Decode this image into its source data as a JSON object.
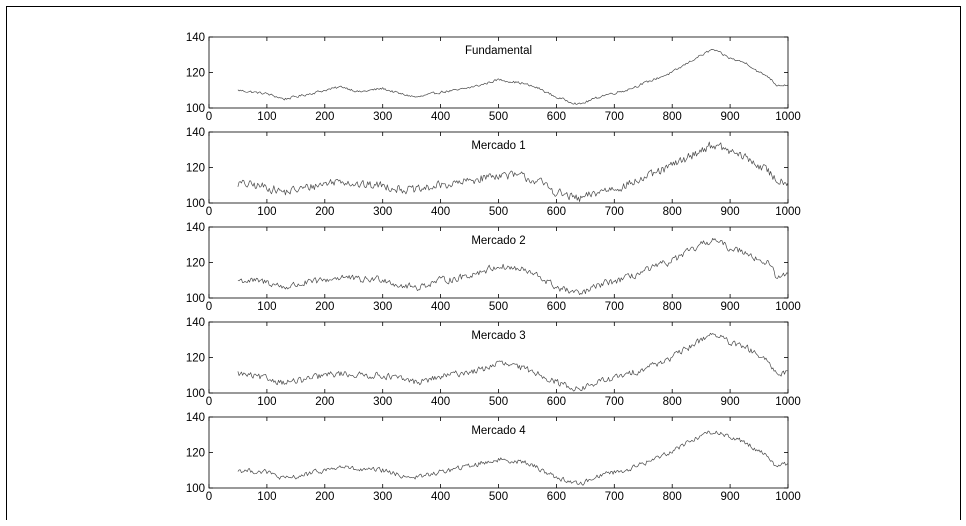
{
  "chart_data": [
    {
      "type": "line",
      "title": "Fundamental",
      "xlim": [
        0,
        1000
      ],
      "ylim": [
        100,
        140
      ],
      "xticks": [
        0,
        100,
        200,
        300,
        400,
        500,
        600,
        700,
        800,
        900,
        1000
      ],
      "yticks": [
        100,
        120,
        140
      ],
      "x_start": 50,
      "x_end": 1000,
      "key_x": [
        50,
        100,
        130,
        160,
        200,
        230,
        260,
        300,
        330,
        360,
        400,
        430,
        470,
        500,
        540,
        570,
        600,
        640,
        680,
        720,
        760,
        800,
        840,
        870,
        900,
        930,
        950,
        965,
        980,
        1000
      ],
      "key_y": [
        110,
        108,
        105,
        107,
        110,
        112,
        109,
        111,
        108,
        106,
        109,
        110,
        113,
        116,
        114,
        111,
        106,
        102,
        107,
        110,
        115,
        120,
        128,
        133,
        128,
        125,
        120,
        118,
        113,
        113
      ],
      "noise": 1.0
    },
    {
      "type": "line",
      "title": "Mercado 1",
      "xlim": [
        0,
        1000
      ],
      "ylim": [
        100,
        140
      ],
      "xticks": [
        0,
        100,
        200,
        300,
        400,
        500,
        600,
        700,
        800,
        900,
        1000
      ],
      "yticks": [
        100,
        120,
        140
      ],
      "x_start": 50,
      "x_end": 1000,
      "key_x": [
        50,
        100,
        130,
        160,
        200,
        230,
        260,
        300,
        330,
        360,
        400,
        430,
        470,
        500,
        540,
        570,
        600,
        640,
        680,
        720,
        760,
        800,
        840,
        870,
        900,
        930,
        950,
        965,
        980,
        1000
      ],
      "key_y": [
        111,
        109,
        106,
        108,
        111,
        113,
        110,
        110,
        108,
        107,
        110,
        111,
        114,
        116,
        115,
        112,
        106,
        102,
        107,
        110,
        115,
        121,
        128,
        133,
        129,
        125,
        121,
        118,
        113,
        112
      ],
      "noise": 3.5
    },
    {
      "type": "line",
      "title": "Mercado 2",
      "xlim": [
        0,
        1000
      ],
      "ylim": [
        100,
        140
      ],
      "xticks": [
        0,
        100,
        200,
        300,
        400,
        500,
        600,
        700,
        800,
        900,
        1000
      ],
      "yticks": [
        100,
        120,
        140
      ],
      "x_start": 50,
      "x_end": 1000,
      "key_x": [
        50,
        100,
        130,
        160,
        200,
        230,
        260,
        300,
        330,
        360,
        400,
        430,
        470,
        500,
        540,
        570,
        600,
        640,
        680,
        720,
        760,
        800,
        840,
        870,
        900,
        930,
        950,
        965,
        980,
        1000
      ],
      "key_y": [
        110,
        109,
        106,
        108,
        110,
        112,
        110,
        111,
        107,
        106,
        110,
        111,
        115,
        118,
        116,
        112,
        106,
        102,
        108,
        111,
        116,
        121,
        128,
        133,
        128,
        126,
        121,
        120,
        112,
        113
      ],
      "noise": 2.8
    },
    {
      "type": "line",
      "title": "Mercado 3",
      "xlim": [
        0,
        1000
      ],
      "ylim": [
        100,
        140
      ],
      "xticks": [
        0,
        100,
        200,
        300,
        400,
        500,
        600,
        700,
        800,
        900,
        1000
      ],
      "yticks": [
        100,
        120,
        140
      ],
      "x_start": 50,
      "x_end": 1000,
      "key_x": [
        50,
        100,
        130,
        160,
        200,
        230,
        260,
        300,
        330,
        360,
        400,
        430,
        470,
        500,
        540,
        570,
        600,
        640,
        680,
        720,
        760,
        800,
        840,
        870,
        900,
        930,
        950,
        965,
        980,
        1000
      ],
      "key_y": [
        111,
        108,
        106,
        107,
        110,
        111,
        110,
        110,
        108,
        106,
        109,
        111,
        113,
        117,
        114,
        111,
        106,
        102,
        107,
        110,
        115,
        120,
        128,
        134,
        128,
        125,
        121,
        117,
        111,
        112
      ],
      "noise": 2.6
    },
    {
      "type": "line",
      "title": "Mercado 4",
      "xlim": [
        0,
        1000
      ],
      "ylim": [
        100,
        140
      ],
      "xticks": [
        0,
        100,
        200,
        300,
        400,
        500,
        600,
        700,
        800,
        900,
        1000
      ],
      "yticks": [
        100,
        120,
        140
      ],
      "x_start": 50,
      "x_end": 1000,
      "key_x": [
        50,
        100,
        130,
        160,
        200,
        230,
        260,
        300,
        330,
        360,
        400,
        430,
        470,
        500,
        540,
        570,
        600,
        640,
        680,
        720,
        760,
        800,
        840,
        870,
        900,
        930,
        950,
        965,
        980,
        1000
      ],
      "key_y": [
        110,
        109,
        105,
        107,
        110,
        112,
        110,
        110,
        107,
        106,
        109,
        111,
        114,
        116,
        115,
        111,
        106,
        102,
        108,
        110,
        115,
        121,
        128,
        132,
        129,
        125,
        121,
        118,
        112,
        114
      ],
      "noise": 2.0
    }
  ],
  "colors": {
    "line": "#4a4a4a",
    "axis": "#000000",
    "background": "#ffffff"
  }
}
